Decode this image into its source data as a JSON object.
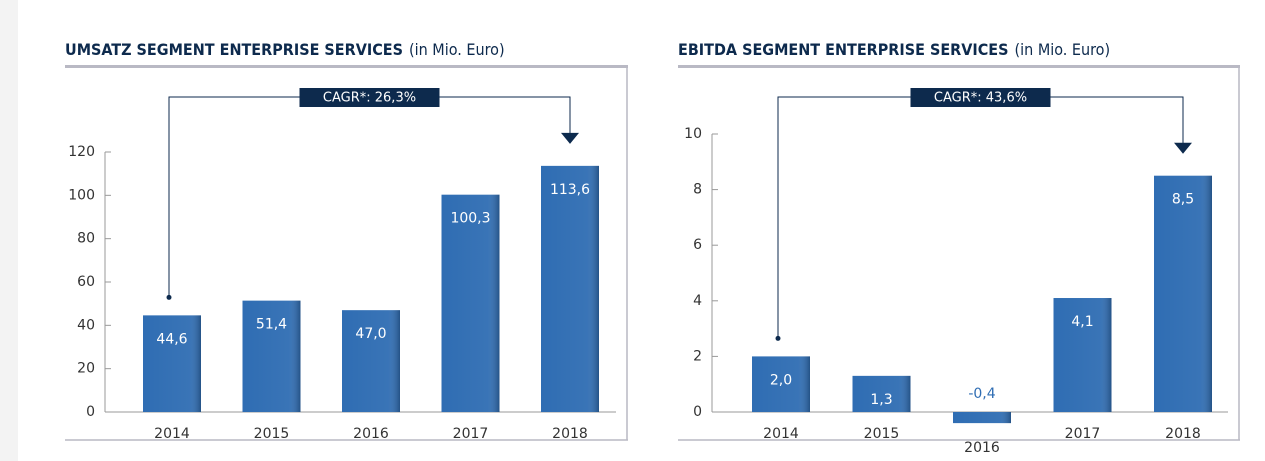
{
  "chart_data": [
    {
      "type": "bar",
      "title": "UMSATZ SEGMENT ENTERPRISE SERVICES",
      "unit": "(in Mio. Euro)",
      "annotation": "CAGR*: 26,3%",
      "categories": [
        "2014",
        "2015",
        "2016",
        "2017",
        "2018"
      ],
      "values": [
        44.6,
        51.4,
        47.0,
        100.3,
        113.6
      ],
      "value_labels": [
        "44,6",
        "51,4",
        "47,0",
        "100,3",
        "113,6"
      ],
      "color": "#2f6db3",
      "ylim": [
        0,
        120
      ],
      "yticks": [
        0,
        20,
        40,
        60,
        80,
        100,
        120
      ]
    },
    {
      "type": "bar",
      "title": "EBITDA SEGMENT ENTERPRISE SERVICES",
      "unit": "(in Mio. Euro)",
      "annotation": "CAGR*: 43,6%",
      "categories": [
        "2014",
        "2015",
        "2016",
        "2017",
        "2018"
      ],
      "values": [
        2.0,
        1.3,
        -0.4,
        4.1,
        8.5
      ],
      "value_labels": [
        "2,0",
        "1,3",
        "-0,4",
        "4,1",
        "8,5"
      ],
      "color": "#2f6db3",
      "ylim": [
        0,
        10
      ],
      "yticks": [
        0,
        2,
        4,
        6,
        8,
        10
      ]
    }
  ]
}
